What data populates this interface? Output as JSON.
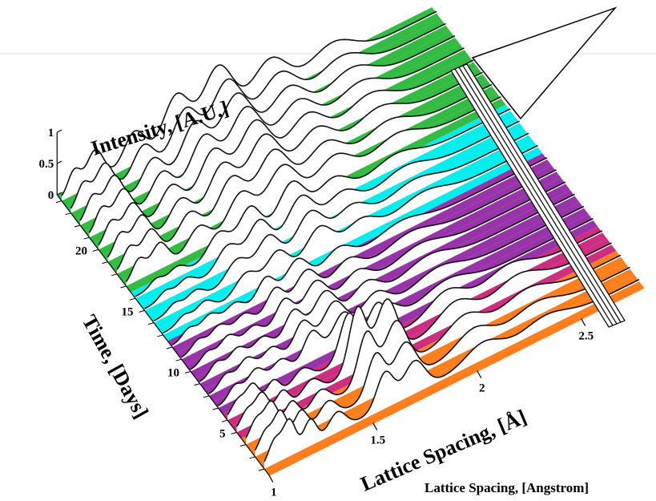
{
  "chart_data": {
    "type": "area",
    "view": "3D waterfall",
    "xlabel": "Lattice Spacing, [Å]",
    "ylabel": "Time, [Days]",
    "zlabel": "Intensity, [A.U.]",
    "caption": "Lattice Spacing, [Angstrom]",
    "x_ticks": [
      "1",
      "1.5",
      "2",
      "2.5"
    ],
    "y_ticks": [
      "5",
      "10",
      "15",
      "20"
    ],
    "z_ticks": [
      "0",
      "0.5",
      "1"
    ],
    "xlim": [
      1.0,
      2.8
    ],
    "ylim": [
      2,
      24
    ],
    "zlim": [
      0,
      1
    ],
    "band_colors": {
      "orange": "#ff7f1f",
      "magenta": "#cc2f7f",
      "purple": "#9933aa",
      "cyan": "#00eeee",
      "green": "#33bb44"
    },
    "series": [
      {
        "day": 2,
        "band": "orange",
        "peaks": [
          [
            1.05,
            0.35,
            0.03
          ],
          [
            1.12,
            0.55,
            0.03
          ],
          [
            1.22,
            0.4,
            0.03
          ],
          [
            1.35,
            0.3,
            0.04
          ],
          [
            1.58,
            0.55,
            0.04
          ],
          [
            1.72,
            0.5,
            0.05
          ],
          [
            2.05,
            0.25,
            0.08
          ],
          [
            2.35,
            0.18,
            0.1
          ]
        ]
      },
      {
        "day": 3,
        "band": "orange",
        "peaks": [
          [
            1.05,
            0.3,
            0.03
          ],
          [
            1.12,
            0.5,
            0.03
          ],
          [
            1.22,
            0.35,
            0.03
          ],
          [
            1.35,
            0.28,
            0.04
          ],
          [
            1.58,
            0.65,
            0.04
          ],
          [
            1.72,
            0.6,
            0.05
          ],
          [
            2.05,
            0.28,
            0.08
          ],
          [
            2.35,
            0.2,
            0.1
          ]
        ]
      },
      {
        "day": 4,
        "band": "orange",
        "peaks": [
          [
            1.05,
            0.3,
            0.03
          ],
          [
            1.12,
            0.45,
            0.03
          ],
          [
            1.22,
            0.3,
            0.03
          ],
          [
            1.36,
            0.25,
            0.04
          ],
          [
            1.58,
            0.8,
            0.04
          ],
          [
            1.72,
            0.75,
            0.05
          ],
          [
            2.05,
            0.3,
            0.08
          ],
          [
            2.35,
            0.22,
            0.1
          ]
        ]
      },
      {
        "day": 5,
        "band": "magenta",
        "peaks": [
          [
            1.05,
            0.25,
            0.03
          ],
          [
            1.12,
            0.4,
            0.03
          ],
          [
            1.22,
            0.28,
            0.03
          ],
          [
            1.36,
            0.22,
            0.04
          ],
          [
            1.58,
            1.0,
            0.04
          ],
          [
            1.72,
            0.9,
            0.05
          ],
          [
            2.05,
            0.32,
            0.08
          ],
          [
            2.35,
            0.25,
            0.1
          ]
        ]
      },
      {
        "day": 6,
        "band": "magenta",
        "peaks": [
          [
            1.05,
            0.22,
            0.03
          ],
          [
            1.12,
            0.35,
            0.03
          ],
          [
            1.22,
            0.25,
            0.03
          ],
          [
            1.36,
            0.2,
            0.04
          ],
          [
            1.58,
            0.7,
            0.04
          ],
          [
            1.72,
            0.65,
            0.05
          ],
          [
            2.05,
            0.3,
            0.08
          ],
          [
            2.35,
            0.22,
            0.1
          ]
        ]
      },
      {
        "day": 7,
        "band": "purple",
        "peaks": [
          [
            1.08,
            0.2,
            0.03
          ],
          [
            1.18,
            0.3,
            0.04
          ],
          [
            1.3,
            0.25,
            0.04
          ],
          [
            1.45,
            0.45,
            0.04
          ],
          [
            1.6,
            0.5,
            0.05
          ],
          [
            1.8,
            0.3,
            0.06
          ],
          [
            2.1,
            0.2,
            0.1
          ]
        ]
      },
      {
        "day": 8,
        "band": "purple",
        "peaks": [
          [
            1.08,
            0.18,
            0.03
          ],
          [
            1.18,
            0.28,
            0.04
          ],
          [
            1.3,
            0.25,
            0.04
          ],
          [
            1.45,
            0.42,
            0.04
          ],
          [
            1.6,
            0.48,
            0.05
          ],
          [
            1.8,
            0.3,
            0.06
          ],
          [
            2.1,
            0.2,
            0.1
          ]
        ]
      },
      {
        "day": 9,
        "band": "purple",
        "peaks": [
          [
            1.08,
            0.18,
            0.03
          ],
          [
            1.18,
            0.25,
            0.04
          ],
          [
            1.3,
            0.22,
            0.04
          ],
          [
            1.45,
            0.4,
            0.04
          ],
          [
            1.6,
            0.45,
            0.05
          ],
          [
            1.8,
            0.28,
            0.06
          ],
          [
            2.1,
            0.2,
            0.1
          ]
        ]
      },
      {
        "day": 10,
        "band": "purple",
        "peaks": [
          [
            1.08,
            0.15,
            0.03
          ],
          [
            1.18,
            0.25,
            0.04
          ],
          [
            1.3,
            0.2,
            0.04
          ],
          [
            1.45,
            0.38,
            0.04
          ],
          [
            1.6,
            0.42,
            0.05
          ],
          [
            1.8,
            0.26,
            0.06
          ],
          [
            2.1,
            0.18,
            0.1
          ]
        ]
      },
      {
        "day": 11,
        "band": "purple",
        "peaks": [
          [
            1.08,
            0.15,
            0.03
          ],
          [
            1.18,
            0.22,
            0.04
          ],
          [
            1.3,
            0.2,
            0.04
          ],
          [
            1.45,
            0.36,
            0.04
          ],
          [
            1.6,
            0.4,
            0.05
          ],
          [
            1.8,
            0.25,
            0.06
          ],
          [
            2.1,
            0.18,
            0.1
          ]
        ]
      },
      {
        "day": 12,
        "band": "purple",
        "peaks": [
          [
            1.08,
            0.14,
            0.03
          ],
          [
            1.18,
            0.2,
            0.04
          ],
          [
            1.3,
            0.18,
            0.04
          ],
          [
            1.45,
            0.34,
            0.04
          ],
          [
            1.6,
            0.38,
            0.05
          ],
          [
            1.8,
            0.24,
            0.06
          ],
          [
            2.1,
            0.16,
            0.1
          ]
        ]
      },
      {
        "day": 13,
        "band": "cyan",
        "peaks": [
          [
            1.1,
            0.12,
            0.03
          ],
          [
            1.2,
            0.18,
            0.04
          ],
          [
            1.4,
            0.3,
            0.05
          ],
          [
            1.55,
            0.4,
            0.05
          ],
          [
            1.75,
            0.45,
            0.06
          ],
          [
            1.95,
            0.25,
            0.07
          ],
          [
            2.25,
            0.18,
            0.1
          ]
        ]
      },
      {
        "day": 14,
        "band": "cyan",
        "peaks": [
          [
            1.1,
            0.12,
            0.03
          ],
          [
            1.2,
            0.16,
            0.04
          ],
          [
            1.4,
            0.32,
            0.05
          ],
          [
            1.55,
            0.45,
            0.05
          ],
          [
            1.75,
            0.5,
            0.06
          ],
          [
            1.95,
            0.28,
            0.07
          ],
          [
            2.25,
            0.18,
            0.1
          ]
        ]
      },
      {
        "day": 15,
        "band": "cyan",
        "peaks": [
          [
            1.1,
            0.12,
            0.03
          ],
          [
            1.2,
            0.16,
            0.04
          ],
          [
            1.4,
            0.35,
            0.05
          ],
          [
            1.55,
            0.5,
            0.05
          ],
          [
            1.75,
            0.55,
            0.06
          ],
          [
            1.95,
            0.3,
            0.07
          ],
          [
            2.25,
            0.2,
            0.1
          ]
        ]
      },
      {
        "day": 16,
        "band": "cyan",
        "peaks": [
          [
            1.1,
            0.12,
            0.03
          ],
          [
            1.2,
            0.15,
            0.04
          ],
          [
            1.4,
            0.36,
            0.05
          ],
          [
            1.55,
            0.52,
            0.05
          ],
          [
            1.75,
            0.58,
            0.06
          ],
          [
            1.95,
            0.32,
            0.07
          ],
          [
            2.25,
            0.2,
            0.1
          ]
        ]
      },
      {
        "day": 17,
        "band": "green",
        "peaks": [
          [
            1.06,
            0.3,
            0.03
          ],
          [
            1.16,
            0.4,
            0.04
          ],
          [
            1.35,
            0.35,
            0.05
          ],
          [
            1.55,
            0.55,
            0.06
          ],
          [
            1.75,
            0.65,
            0.07
          ],
          [
            2.0,
            0.4,
            0.08
          ],
          [
            2.3,
            0.25,
            0.1
          ]
        ]
      },
      {
        "day": 18,
        "band": "green",
        "peaks": [
          [
            1.06,
            0.3,
            0.03
          ],
          [
            1.16,
            0.42,
            0.04
          ],
          [
            1.35,
            0.38,
            0.05
          ],
          [
            1.55,
            0.6,
            0.06
          ],
          [
            1.75,
            0.7,
            0.07
          ],
          [
            2.0,
            0.42,
            0.08
          ],
          [
            2.3,
            0.26,
            0.1
          ]
        ]
      },
      {
        "day": 19,
        "band": "green",
        "peaks": [
          [
            1.06,
            0.32,
            0.03
          ],
          [
            1.16,
            0.45,
            0.04
          ],
          [
            1.35,
            0.4,
            0.05
          ],
          [
            1.55,
            0.62,
            0.06
          ],
          [
            1.75,
            0.75,
            0.07
          ],
          [
            2.0,
            0.45,
            0.08
          ],
          [
            2.3,
            0.28,
            0.1
          ]
        ]
      },
      {
        "day": 20,
        "band": "green",
        "peaks": [
          [
            1.06,
            0.32,
            0.03
          ],
          [
            1.16,
            0.45,
            0.04
          ],
          [
            1.35,
            0.42,
            0.05
          ],
          [
            1.55,
            0.65,
            0.06
          ],
          [
            1.75,
            0.78,
            0.07
          ],
          [
            2.0,
            0.48,
            0.08
          ],
          [
            2.3,
            0.3,
            0.1
          ]
        ]
      },
      {
        "day": 21,
        "band": "green",
        "peaks": [
          [
            1.06,
            0.34,
            0.03
          ],
          [
            1.16,
            0.48,
            0.04
          ],
          [
            1.35,
            0.44,
            0.05
          ],
          [
            1.55,
            0.68,
            0.06
          ],
          [
            1.75,
            0.8,
            0.07
          ],
          [
            2.0,
            0.5,
            0.08
          ],
          [
            2.3,
            0.3,
            0.1
          ]
        ]
      },
      {
        "day": 22,
        "band": "green",
        "peaks": [
          [
            1.06,
            0.34,
            0.03
          ],
          [
            1.16,
            0.5,
            0.04
          ],
          [
            1.35,
            0.46,
            0.05
          ],
          [
            1.55,
            0.7,
            0.06
          ],
          [
            1.75,
            0.82,
            0.07
          ],
          [
            2.0,
            0.52,
            0.08
          ],
          [
            2.3,
            0.32,
            0.1
          ]
        ]
      },
      {
        "day": 23,
        "band": "green",
        "peaks": [
          [
            1.06,
            0.35,
            0.03
          ],
          [
            1.16,
            0.5,
            0.04
          ],
          [
            1.35,
            0.48,
            0.05
          ],
          [
            1.55,
            0.72,
            0.06
          ],
          [
            1.75,
            0.85,
            0.07
          ],
          [
            2.0,
            0.55,
            0.08
          ],
          [
            2.3,
            0.32,
            0.1
          ]
        ]
      },
      {
        "day": 24,
        "band": "green",
        "peaks": [
          [
            1.06,
            0.36,
            0.03
          ],
          [
            1.16,
            0.52,
            0.04
          ],
          [
            1.35,
            0.5,
            0.05
          ],
          [
            1.55,
            0.75,
            0.06
          ],
          [
            1.75,
            0.88,
            0.07
          ],
          [
            2.0,
            0.58,
            0.08
          ],
          [
            2.3,
            0.34,
            0.1
          ]
        ]
      }
    ]
  }
}
